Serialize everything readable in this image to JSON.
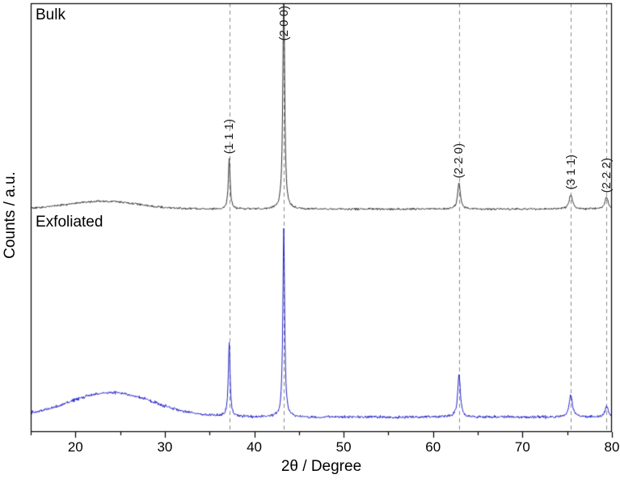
{
  "figure": {
    "background": "#ffffff",
    "frame_color": "#000000",
    "dashed_line_color": "#8c8c8c",
    "text_color": "#000000"
  },
  "chart_data": {
    "type": "line",
    "title": "",
    "xlabel": "2θ / Degree",
    "ylabel": "Counts / a.u.",
    "xlim": [
      15,
      80
    ],
    "x_ticks": [
      20,
      30,
      40,
      50,
      60,
      70,
      80
    ],
    "x_minor_tick_step": 5,
    "grid": false,
    "legend_position": "in-plot-text-labels",
    "peak_positions_2theta": [
      37.2,
      43.3,
      62.9,
      75.4,
      79.4
    ],
    "peak_labels": [
      "(1 1 1)",
      "(2 0 0)",
      "(2 2 0)",
      "(3 1 1)",
      "(2 2 2)"
    ],
    "series": [
      {
        "name": "Bulk",
        "color": "#303030",
        "baseline_offset": 0.52,
        "peak_heights": [
          0.117,
          0.52,
          0.062,
          0.034,
          0.028
        ],
        "peak_hwhm": [
          0.12,
          0.12,
          0.18,
          0.22,
          0.22
        ],
        "amorphous_hump": {
          "center": 23,
          "sigma": 4.0,
          "height": 0.018
        },
        "noise_amplitude": 0.0035
      },
      {
        "name": "Exfoliated",
        "color": "#2323cb",
        "baseline_offset": 0.035,
        "peak_heights": [
          0.17,
          0.44,
          0.098,
          0.053,
          0.026
        ],
        "peak_hwhm": [
          0.12,
          0.12,
          0.18,
          0.22,
          0.22
        ],
        "amorphous_hump": {
          "center": 24,
          "sigma": 4.8,
          "height": 0.057
        },
        "noise_amplitude": 0.005
      }
    ]
  }
}
